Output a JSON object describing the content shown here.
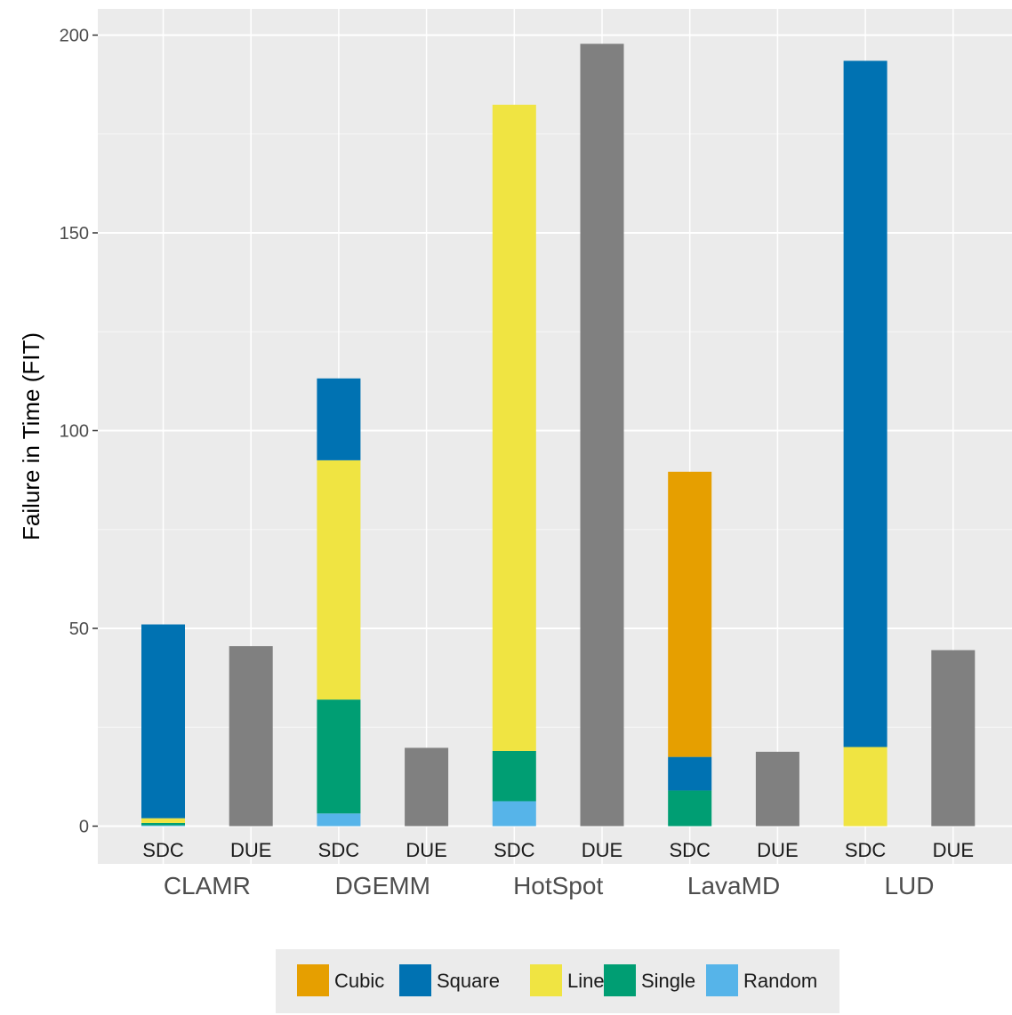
{
  "chart_data": {
    "type": "bar",
    "stacked": true,
    "ylabel": "Failure in Time (FIT)",
    "xlabel": "",
    "ylim": [
      -9,
      208
    ],
    "yticks": [
      0,
      50,
      100,
      150,
      200
    ],
    "grid": true,
    "legend_position": "bottom",
    "groups": [
      "CLAMR",
      "DGEMM",
      "HotSpot",
      "LavaMD",
      "LUD"
    ],
    "types": [
      "SDC",
      "DUE"
    ],
    "legend": [
      {
        "name": "Cubic",
        "color": "#E69F00"
      },
      {
        "name": "Square",
        "color": "#0072B2"
      },
      {
        "name": "Line",
        "color": "#F0E442"
      },
      {
        "name": "Single",
        "color": "#009E73"
      },
      {
        "name": "Random",
        "color": "#56B4E9"
      }
    ],
    "due_color": "#808080",
    "bars": [
      {
        "group": "CLAMR",
        "type": "SDC",
        "segments": {
          "Random": 0.2,
          "Single": 0.6,
          "Line": 1.2,
          "Square": 49.0,
          "Cubic": 0
        }
      },
      {
        "group": "CLAMR",
        "type": "DUE",
        "value": 45.5
      },
      {
        "group": "DGEMM",
        "type": "SDC",
        "segments": {
          "Random": 3.2,
          "Single": 28.8,
          "Line": 60.5,
          "Square": 20.7,
          "Cubic": 0
        }
      },
      {
        "group": "DGEMM",
        "type": "DUE",
        "value": 19.8
      },
      {
        "group": "HotSpot",
        "type": "SDC",
        "segments": {
          "Random": 6.3,
          "Single": 12.7,
          "Line": 163.4,
          "Square": 0,
          "Cubic": 0
        }
      },
      {
        "group": "HotSpot",
        "type": "DUE",
        "value": 197.8
      },
      {
        "group": "LavaMD",
        "type": "SDC",
        "segments": {
          "Random": 0,
          "Single": 9.0,
          "Line": 0,
          "Square": 8.5,
          "Cubic": 72.1
        }
      },
      {
        "group": "LavaMD",
        "type": "DUE",
        "value": 18.8
      },
      {
        "group": "LUD",
        "type": "SDC",
        "segments": {
          "Random": 0,
          "Single": 0,
          "Line": 20.0,
          "Square": 173.5,
          "Cubic": 0
        }
      },
      {
        "group": "LUD",
        "type": "DUE",
        "value": 44.5
      }
    ]
  }
}
